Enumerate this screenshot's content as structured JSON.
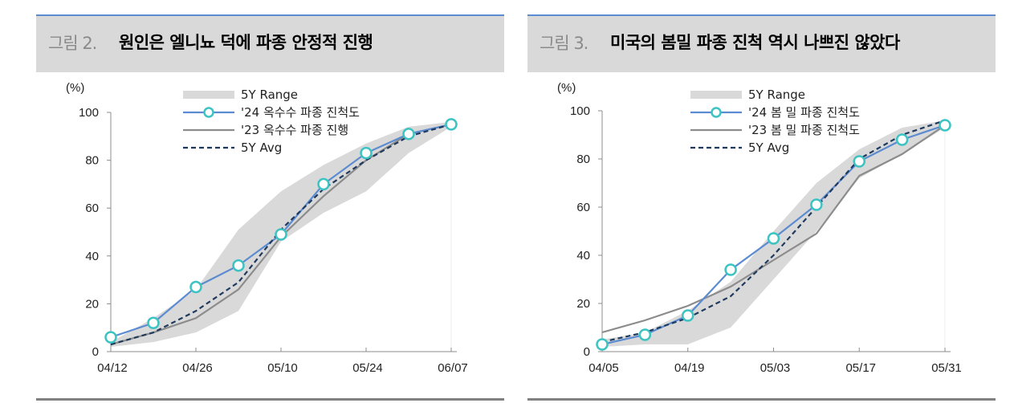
{
  "panels": [
    {
      "fig_label": "그림 2.",
      "title": "원인은 엘니뇨 덕에 파종 안정적 진행",
      "y_unit": "(%)",
      "legend": [
        "5Y Range",
        "'24 옥수수 파종 진척도",
        "'23 옥수수 파종 진행",
        "5Y Avg"
      ]
    },
    {
      "fig_label": "그림 3.",
      "title": "미국의 봄밀 파종 진척 역시 나쁘진 않았다",
      "y_unit": "(%)",
      "legend": [
        "5Y Range",
        "'24 봄 밀 파종 진척도",
        "'23 봄 밀 파종 진척도",
        "5Y Avg"
      ]
    }
  ],
  "colors": {
    "header_bg": "#d9d9d9",
    "header_rule": "#5b8bd0",
    "range_fill": "#d9d9d9",
    "series_2024": "#5b8bd0",
    "marker": "#3ec3c3",
    "series_2023": "#8c8c8c",
    "avg": "#1f3a5f"
  },
  "chart_data": [
    {
      "type": "line",
      "title": "원인은 엘니뇨 덕에 파종 안정적 진행",
      "ylabel": "(%)",
      "xlabel": "",
      "ylim": [
        0,
        100
      ],
      "yticks": [
        0,
        20,
        40,
        60,
        80,
        100
      ],
      "xtick_labels": [
        "04/12",
        "04/26",
        "05/10",
        "05/24",
        "06/07"
      ],
      "x": [
        "04/12",
        "04/19",
        "04/26",
        "05/03",
        "05/10",
        "05/17",
        "05/24",
        "05/31",
        "06/07"
      ],
      "series": [
        {
          "name": "'24 옥수수 파종 진척도",
          "values": [
            6,
            12,
            27,
            36,
            49,
            70,
            83,
            91,
            95
          ]
        },
        {
          "name": "'23 옥수수 파종 진행",
          "values": [
            3,
            8,
            14,
            26,
            48,
            65,
            80,
            91,
            95
          ]
        },
        {
          "name": "5Y Avg",
          "values": [
            3,
            8,
            17,
            29,
            51,
            68,
            80,
            90,
            95
          ]
        }
      ],
      "range": {
        "name": "5Y Range",
        "high": [
          4,
          14,
          26,
          51,
          67,
          78,
          87,
          94,
          96
        ],
        "low": [
          2,
          4,
          8,
          17,
          46,
          58,
          67,
          83,
          94
        ]
      },
      "legend_position": "top-center",
      "grid": false
    },
    {
      "type": "line",
      "title": "미국의 봄밀 파종 진척 역시 나쁘진 않았다",
      "ylabel": "(%)",
      "xlabel": "",
      "ylim": [
        0,
        100
      ],
      "yticks": [
        0,
        20,
        40,
        60,
        80,
        100
      ],
      "xtick_labels": [
        "04/05",
        "04/19",
        "05/03",
        "05/17",
        "05/31"
      ],
      "x": [
        "04/05",
        "04/12",
        "04/19",
        "04/26",
        "05/03",
        "05/10",
        "05/17",
        "05/24",
        "05/31"
      ],
      "series": [
        {
          "name": "'24 봄 밀 파종 진척도",
          "values": [
            3,
            7,
            15,
            34,
            47,
            61,
            79,
            88,
            94
          ]
        },
        {
          "name": "'23 봄 밀 파종 진척도",
          "values": [
            8,
            13,
            19,
            27,
            38,
            49,
            73,
            82,
            94
          ]
        },
        {
          "name": "5Y Avg",
          "values": [
            4,
            8,
            14,
            23,
            40,
            60,
            80,
            90,
            96
          ]
        }
      ],
      "range": {
        "name": "5Y Range",
        "high": [
          5,
          8,
          17,
          29,
          50,
          70,
          84,
          93,
          96
        ],
        "low": [
          2,
          3,
          3,
          10,
          30,
          50,
          72,
          82,
          93
        ]
      },
      "legend_position": "top-center",
      "grid": false
    }
  ]
}
